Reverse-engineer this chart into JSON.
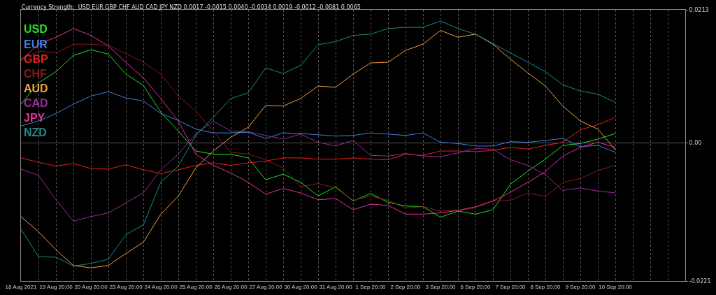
{
  "chart_data": {
    "type": "line",
    "title": "Currency Strength:  USD EUR GBP CHF AUD CAD JPY NZD 0.0017 -0.0015 0.0040 -0.0034 0.0019 -0.0012 -0.0081 0.0065",
    "categories": [
      "18 Aug 2021",
      null,
      "19 Aug 20:00",
      null,
      "20 Aug 20:00",
      null,
      "23 Aug 20:00",
      null,
      "24 Aug 20:00",
      null,
      "25 Aug 20:00",
      null,
      "26 Aug 20:00",
      null,
      "27 Aug 20:00",
      null,
      "30 Aug 20:00",
      null,
      "31 Aug 20:00",
      null,
      "1 Sep 20:00",
      null,
      "2 Sep 20:00",
      null,
      "3 Sep 20:00",
      null,
      "6 Sep 20:00",
      null,
      "7 Sep 20:00",
      null,
      "8 Sep 20:00",
      null,
      "9 Sep 20:00",
      null,
      "10 Sep 20:00",
      null,
      null,
      null,
      null
    ],
    "ylim": [
      -0.0221,
      0.0213
    ],
    "yticks": [
      0.0213,
      {
        "value": 0,
        "label": "0.00"
      },
      -0.0221
    ],
    "grid": true,
    "legend": "top left",
    "line_style": "solid",
    "marker": "none",
    "series": [
      {
        "name": "USD",
        "color": "#22e022",
        "values": [
          0.0062,
          0.0096,
          0.0114,
          0.014,
          0.0149,
          0.0142,
          0.011,
          0.0092,
          0.0049,
          0.0019,
          -0.0013,
          -0.0018,
          -0.0018,
          -0.0024,
          -0.0059,
          -0.005,
          -0.0063,
          -0.0085,
          -0.007,
          -0.0093,
          -0.0081,
          -0.0095,
          -0.0101,
          -0.0102,
          -0.0119,
          -0.0109,
          -0.0114,
          -0.0107,
          -0.0066,
          -0.0045,
          -0.0026,
          -0.0004,
          -0.0001,
          0.0006,
          0.0015,
          null,
          null,
          null,
          null
        ]
      },
      {
        "name": "EUR",
        "color": "#3a80e0",
        "values": [
          0.0027,
          0.0035,
          0.0047,
          0.0062,
          0.0075,
          0.0082,
          0.0072,
          0.0067,
          0.0047,
          0.0036,
          0.0022,
          0.0016,
          0.0016,
          0.0017,
          0.0007,
          0.0016,
          0.0015,
          0.0013,
          0.0011,
          0.0012,
          0.0016,
          0.0014,
          0.0012,
          0.0016,
          0.0001,
          -0.0001,
          -0.0005,
          -0.0005,
          0.0002,
          0.0001,
          0.0004,
          0.0007,
          -0.0006,
          -0.0004,
          -0.0015,
          null,
          null,
          null,
          null
        ]
      },
      {
        "name": "GBP",
        "color": "#e8201e",
        "values": [
          -0.0024,
          -0.0031,
          -0.0037,
          -0.0033,
          -0.0041,
          -0.0042,
          -0.0035,
          -0.0043,
          -0.0049,
          -0.0043,
          -0.0036,
          -0.0032,
          -0.0036,
          -0.0032,
          -0.0029,
          -0.0024,
          -0.0024,
          -0.0026,
          -0.0026,
          -0.0024,
          -0.0026,
          -0.0027,
          -0.0018,
          -0.002,
          -0.0013,
          -0.0013,
          -0.0014,
          -0.0012,
          -0.0007,
          -0.001,
          -0.0004,
          0.0001,
          0.0021,
          0.0029,
          0.0041,
          null,
          null,
          null,
          null
        ]
      },
      {
        "name": "CHF",
        "color": "#8b1a1a",
        "values": [
          0.0134,
          0.0147,
          0.0144,
          0.0158,
          0.0158,
          0.0156,
          0.0143,
          0.0129,
          0.011,
          0.0075,
          0.0051,
          0.0019,
          -0.0015,
          -0.0018,
          -0.0027,
          -0.004,
          -0.007,
          -0.0065,
          -0.0072,
          -0.0092,
          -0.0085,
          -0.0092,
          -0.0104,
          -0.0102,
          -0.0109,
          -0.0108,
          -0.0104,
          -0.0093,
          -0.0092,
          -0.008,
          -0.0086,
          -0.0063,
          -0.0057,
          -0.0044,
          -0.0036,
          null,
          null,
          null,
          null
        ]
      },
      {
        "name": "AUD",
        "color": "#f5a040",
        "values": [
          -0.0118,
          -0.0142,
          -0.0171,
          -0.0196,
          -0.02,
          -0.0196,
          -0.0177,
          -0.0159,
          -0.0114,
          -0.0085,
          -0.004,
          -0.0013,
          0.0009,
          0.0025,
          0.006,
          0.0059,
          0.0071,
          0.0091,
          0.0089,
          0.011,
          0.0128,
          0.0129,
          0.0148,
          0.0158,
          0.018,
          0.0169,
          0.0174,
          0.0158,
          0.0134,
          0.0112,
          0.0091,
          0.0059,
          0.0035,
          0.0022,
          -0.0011,
          null,
          null,
          null,
          null
        ]
      },
      {
        "name": "CAD",
        "color": "#9a2a9a",
        "values": [
          -0.0042,
          -0.0052,
          -0.0091,
          -0.0125,
          -0.0118,
          -0.0112,
          -0.0096,
          -0.008,
          -0.0043,
          -0.0018,
          0.0014,
          0.0035,
          0.0019,
          0.0018,
          0.0012,
          0.0006,
          0.0014,
          0.0001,
          -0.0005,
          0.0004,
          -0.002,
          -0.0021,
          -0.0017,
          -0.0021,
          -0.0022,
          -0.0016,
          -0.0009,
          -0.001,
          -0.0027,
          -0.0036,
          -0.0051,
          -0.0076,
          -0.0072,
          -0.0077,
          -0.008,
          null,
          null,
          null,
          null
        ]
      },
      {
        "name": "JPY",
        "color": "#e8309a",
        "values": [
          0.0132,
          0.0158,
          0.0169,
          0.0183,
          0.0172,
          0.0155,
          0.0129,
          0.0104,
          0.0071,
          0.0035,
          -0.0018,
          -0.0036,
          -0.0048,
          -0.0063,
          -0.0082,
          -0.0073,
          -0.008,
          -0.0091,
          -0.0089,
          -0.0107,
          -0.0098,
          -0.01,
          -0.0114,
          -0.0114,
          -0.0112,
          -0.0108,
          -0.0102,
          -0.0093,
          -0.0079,
          -0.0063,
          -0.0046,
          -0.0021,
          -0.0007,
          0.0001,
          -0.0007,
          null,
          null,
          null,
          null
        ]
      },
      {
        "name": "NZD",
        "color": "#1a8a8a",
        "values": [
          -0.0138,
          -0.0182,
          -0.0183,
          -0.0197,
          -0.0193,
          -0.0186,
          -0.0147,
          -0.0131,
          -0.0063,
          -0.0037,
          0.0012,
          0.0041,
          0.0071,
          0.008,
          0.012,
          0.0111,
          0.0124,
          0.0157,
          0.0162,
          0.0172,
          0.0174,
          0.0183,
          0.0185,
          0.0185,
          0.0195,
          0.0183,
          0.0174,
          0.0159,
          0.0144,
          0.0129,
          0.0114,
          0.0093,
          0.0083,
          0.0078,
          0.0065,
          null,
          null,
          null,
          null
        ]
      }
    ]
  }
}
